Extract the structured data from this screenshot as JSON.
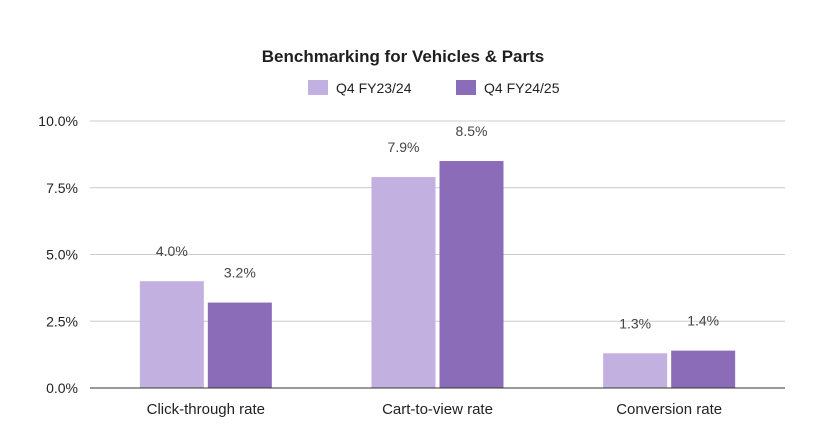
{
  "chart_data": {
    "type": "bar",
    "title": "Benchmarking for Vehicles & Parts",
    "categories": [
      "Click-through rate",
      "Cart-to-view rate",
      "Conversion rate"
    ],
    "series": [
      {
        "name": "Q4 FY23/24",
        "color": "#c1b0e0",
        "values": [
          4.0,
          7.9,
          1.3
        ],
        "labels": [
          "4.0%",
          "7.9%",
          "1.3%"
        ]
      },
      {
        "name": "Q4 FY24/25",
        "color": "#8b6cb8",
        "values": [
          3.2,
          8.5,
          1.4
        ],
        "labels": [
          "3.2%",
          "8.5%",
          "1.4%"
        ]
      }
    ],
    "ylim": [
      0,
      10
    ],
    "yticks": [
      0,
      2.5,
      5,
      7.5,
      10
    ],
    "ytick_labels": [
      "0.0%",
      "2.5%",
      "5.0%",
      "7.5%",
      "10.0%"
    ],
    "xlabel": "",
    "ylabel": "",
    "legend_position": "top",
    "grid": true
  }
}
